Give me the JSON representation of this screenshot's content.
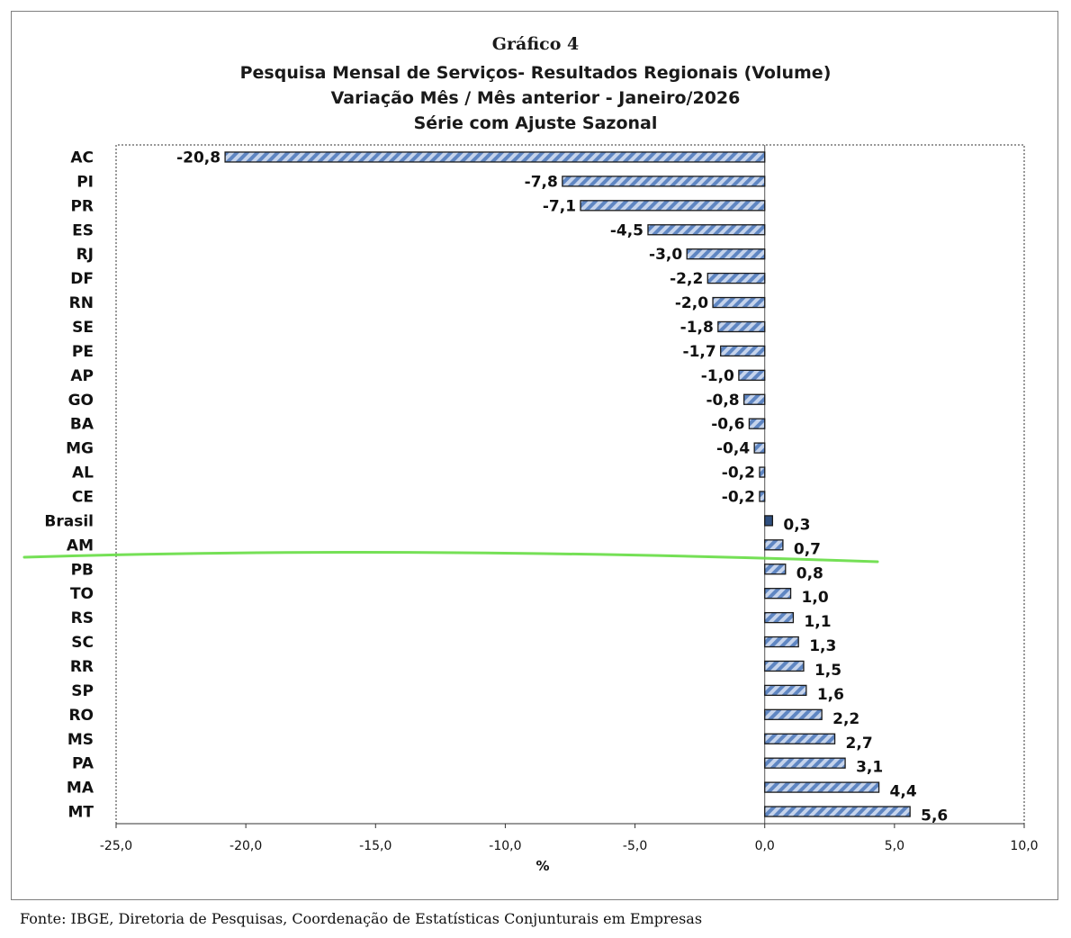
{
  "chart_data": {
    "type": "bar",
    "orientation": "horizontal",
    "title": "Gráfico 4",
    "subtitle": [
      "Pesquisa Mensal de Serviços- Resultados Regionais (Volume)",
      "Variação Mês / Mês anterior - Janeiro/2026",
      "Série com Ajuste Sazonal"
    ],
    "categories": [
      "AC",
      "PI",
      "PR",
      "ES",
      "RJ",
      "DF",
      "RN",
      "SE",
      "PE",
      "AP",
      "GO",
      "BA",
      "MG",
      "AL",
      "CE",
      "Brasil",
      "AM",
      "PB",
      "TO",
      "RS",
      "SC",
      "RR",
      "SP",
      "RO",
      "MS",
      "PA",
      "MA",
      "MT"
    ],
    "values": [
      -20.8,
      -7.8,
      -7.1,
      -4.5,
      -3.0,
      -2.2,
      -2.0,
      -1.8,
      -1.7,
      -1.0,
      -0.8,
      -0.6,
      -0.4,
      -0.2,
      -0.2,
      0.3,
      0.7,
      0.8,
      1.0,
      1.1,
      1.3,
      1.5,
      1.6,
      2.2,
      2.7,
      3.1,
      4.4,
      5.6
    ],
    "data_labels": [
      "-20,8",
      "-7,8",
      "-7,1",
      "-4,5",
      "-3,0",
      "-2,2",
      "-2,0",
      "-1,8",
      "-1,7",
      "-1,0",
      "-0,8",
      "-0,6",
      "-0,4",
      "-0,2",
      "-0,2",
      "0,3",
      "0,7",
      "0,8",
      "1,0",
      "1,1",
      "1,3",
      "1,5",
      "1,6",
      "2,2",
      "2,7",
      "3,1",
      "4,4",
      "5,6"
    ],
    "highlight_category": "Brasil",
    "xlim": [
      -25,
      10
    ],
    "xticks": [
      -25,
      -20,
      -15,
      -10,
      -5,
      0,
      5,
      10
    ],
    "xtick_labels": [
      "-25,0",
      "-20,0",
      "-15,0",
      "-10,0",
      "-5,0",
      "0,0",
      "5,0",
      "10,0"
    ],
    "xlabel": "%",
    "ylabel": "",
    "colors": {
      "bar_fill": "#c6d4ec",
      "bar_stripe": "#5f86c2",
      "bar_edge": "#1a1a1a",
      "highlight_fill": "#2f4f7f",
      "annotation_line": "#66dd44",
      "text": "#111111"
    },
    "annotation": "green hand-drawn line separating AM and PB"
  },
  "source": "Fonte: IBGE, Diretoria de Pesquisas, Coordenação de Estatísticas Conjunturais em Empresas"
}
